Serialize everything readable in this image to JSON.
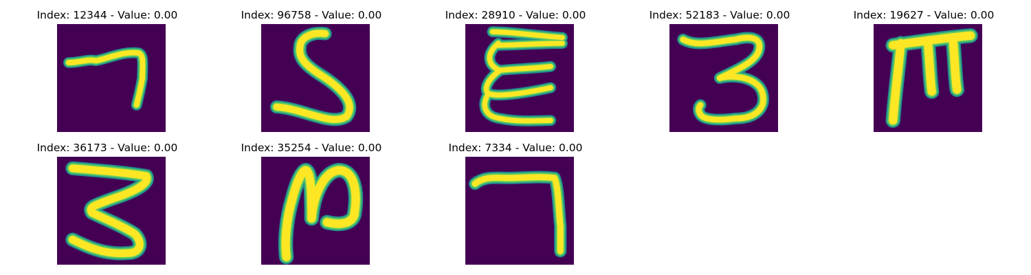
{
  "colors": {
    "background": "#440154",
    "stroke_outer": "#21918c",
    "stroke_mid": "#5ec962",
    "stroke_core": "#fde725"
  },
  "panels": [
    {
      "title": "Index: 12344 - Value: 0.00",
      "glyph": "seven"
    },
    {
      "title": "Index: 96758 - Value: 0.00",
      "glyph": "five"
    },
    {
      "title": "Index: 28910 - Value: 0.00",
      "glyph": "epsilon-e"
    },
    {
      "title": "Index: 52183 - Value: 0.00",
      "glyph": "three"
    },
    {
      "title": "Index: 19627 - Value: 0.00",
      "glyph": "m"
    },
    {
      "title": "Index: 36173 - Value: 0.00",
      "glyph": "three-large"
    },
    {
      "title": "Index: 35254 - Value: 0.00",
      "glyph": "n-like"
    },
    {
      "title": "Index: 7334 - Value: 0.00",
      "glyph": "seven-tall"
    }
  ]
}
